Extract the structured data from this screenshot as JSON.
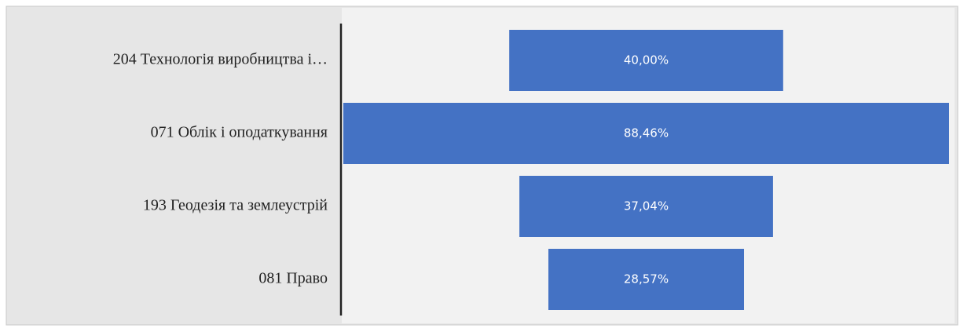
{
  "chart_data": {
    "type": "funnel",
    "categories": [
      "204 Технологія виробництва і…",
      "071 Облік і оподаткування",
      "193 Геодезія та землеустрій",
      "081 Право"
    ],
    "values": [
      40.0,
      88.46,
      37.04,
      28.57
    ],
    "value_labels": [
      "40,00%",
      "88,46%",
      "37,04%",
      "28,57%"
    ],
    "color": "#4472c4"
  }
}
